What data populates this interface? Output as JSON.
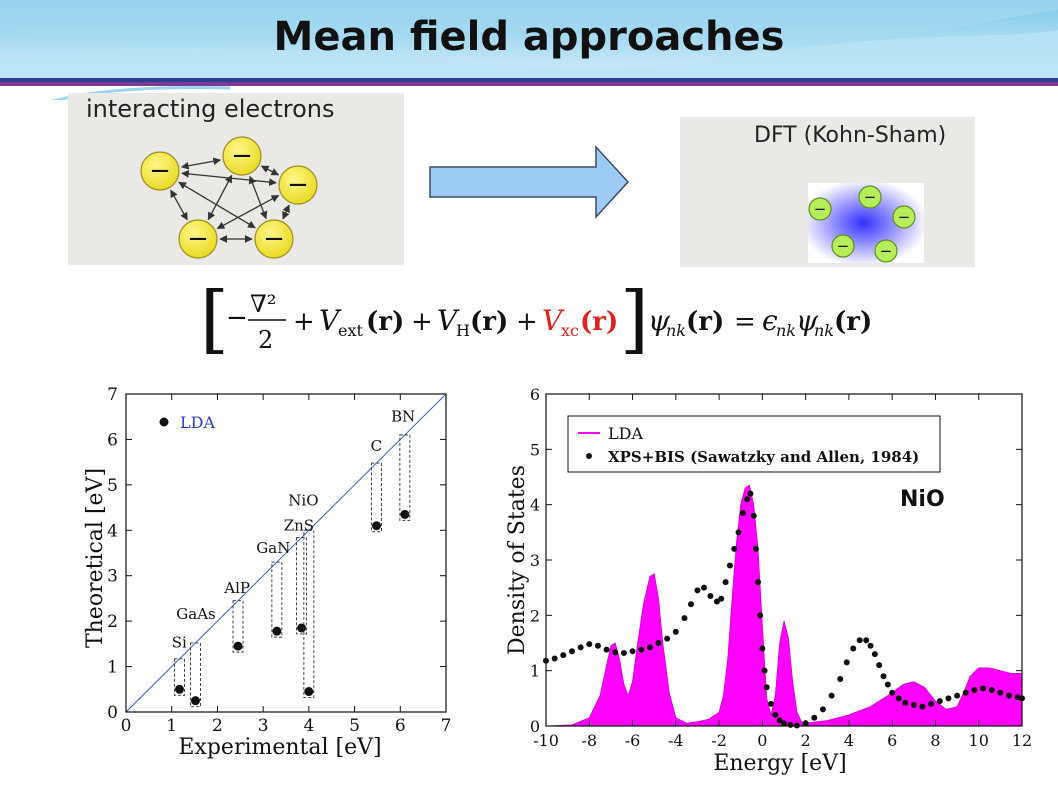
{
  "slide": {
    "title": "Mean field approaches"
  },
  "colors": {
    "banner_blue": "#8fd0ec",
    "stripe_navy": "#2a3e8c",
    "stripe_purple": "#7a3a9a",
    "electron_yellow": "#f2e63a",
    "kohn_sham_green": "#b6ee5a",
    "arrow_blue": "#9ecbf3",
    "lda_line": "#3a5bd0",
    "lda_fill": "#ff00ff",
    "vxc_red": "#e0201a"
  },
  "left_panel": {
    "label": "interacting electrons",
    "electron_symbol": "−",
    "icons": [
      "electron-icon",
      "double-arrow-icon"
    ]
  },
  "right_panel": {
    "label": "DFT (Kohn-Sham)",
    "electron_symbol": "−",
    "icons": [
      "kohn-sham-electron-icon",
      "effective-potential-cloud"
    ]
  },
  "arrow": {
    "icon": "right-arrow-icon"
  },
  "equation": {
    "open_bracket": "[",
    "minus": "−",
    "nabla_sq": "∇²",
    "two": "2",
    "v_ext": "V",
    "v_ext_sub": "ext",
    "v_h": "V",
    "v_h_sub": "H",
    "v_xc": "V",
    "v_xc_sub": "xc",
    "r_arg": "(r)",
    "plus": "+",
    "close_bracket": "]",
    "psi": "ψ",
    "nk_sub": "nk",
    "equals": "=",
    "epsilon": "ϵ"
  },
  "chart_data": [
    {
      "type": "scatter",
      "xlabel": "Experimental   [eV]",
      "ylabel": "Theoretical  [eV]",
      "xlim": [
        0,
        7
      ],
      "ylim": [
        0,
        7
      ],
      "x_ticks": [
        0,
        1,
        2,
        3,
        4,
        5,
        6,
        7
      ],
      "y_ticks": [
        0,
        1,
        2,
        3,
        4,
        5,
        6,
        7
      ],
      "legend": {
        "placement": "top-left",
        "entries": [
          "LDA"
        ]
      },
      "diagonal": true,
      "points": [
        {
          "label": "Si",
          "exp": 1.17,
          "lda": 0.5
        },
        {
          "label": "GaAs",
          "exp": 1.52,
          "lda": 0.25
        },
        {
          "label": "AlP",
          "exp": 2.45,
          "lda": 1.45
        },
        {
          "label": "GaN",
          "exp": 3.3,
          "lda": 1.78
        },
        {
          "label": "ZnS",
          "exp": 3.84,
          "lda": 1.85
        },
        {
          "label": "NiO",
          "exp": 4.0,
          "lda": 0.45
        },
        {
          "label": "C",
          "exp": 5.48,
          "lda": 4.1
        },
        {
          "label": "BN",
          "exp": 6.1,
          "lda": 4.35
        }
      ],
      "labels": [
        {
          "text": "Si",
          "x": 1.0,
          "y": 1.42
        },
        {
          "text": "GaAs",
          "x": 1.1,
          "y": 2.05
        },
        {
          "text": "AlP",
          "x": 2.15,
          "y": 2.62
        },
        {
          "text": "GaN",
          "x": 2.85,
          "y": 3.5
        },
        {
          "text": "ZnS",
          "x": 3.45,
          "y": 4.0
        },
        {
          "text": "NiO",
          "x": 3.55,
          "y": 4.55
        },
        {
          "text": "C",
          "x": 5.35,
          "y": 5.75
        },
        {
          "text": "BN",
          "x": 5.8,
          "y": 6.4
        }
      ]
    },
    {
      "type": "area",
      "xlabel": "Energy   [eV]",
      "ylabel": "Density of States",
      "xlim": [
        -10,
        12
      ],
      "ylim": [
        0,
        6
      ],
      "x_ticks": [
        -10,
        -8,
        -6,
        -4,
        -2,
        0,
        2,
        4,
        6,
        8,
        10,
        12
      ],
      "y_ticks": [
        0,
        1,
        2,
        3,
        4,
        5,
        6
      ],
      "legend": {
        "placement": "top-left"
      },
      "annotation": "NiO",
      "series": [
        {
          "name": "LDA",
          "style": "filled-area",
          "x": [
            -10,
            -8.8,
            -8,
            -7.5,
            -7.2,
            -7.0,
            -6.8,
            -6.6,
            -6.4,
            -6.2,
            -6.0,
            -5.8,
            -5.5,
            -5.2,
            -5.0,
            -4.8,
            -4.6,
            -4.3,
            -4.0,
            -3.5,
            -3.0,
            -2.5,
            -2.0,
            -1.8,
            -1.6,
            -1.4,
            -1.2,
            -1.0,
            -0.8,
            -0.6,
            -0.4,
            -0.2,
            0.0,
            0.2,
            0.4,
            0.6,
            0.8,
            1.0,
            1.2,
            1.4,
            1.6,
            1.8,
            2.0,
            3.0,
            4.0,
            5.0,
            6.0,
            6.5,
            7.0,
            7.5,
            8.0,
            8.5,
            9.0,
            9.3,
            9.6,
            10.0,
            10.5,
            11.0,
            11.5,
            12.0
          ],
          "y": [
            0,
            0.02,
            0.15,
            0.55,
            1.1,
            1.45,
            1.5,
            1.2,
            0.75,
            0.55,
            0.8,
            1.4,
            2.2,
            2.7,
            2.75,
            2.3,
            1.5,
            0.6,
            0.15,
            0.05,
            0.08,
            0.12,
            0.25,
            0.55,
            1.2,
            2.3,
            3.3,
            4.0,
            4.3,
            4.35,
            4.0,
            3.2,
            1.8,
            0.5,
            0.2,
            0.55,
            1.5,
            1.9,
            1.6,
            0.8,
            0.25,
            0.08,
            0.05,
            0.1,
            0.2,
            0.35,
            0.6,
            0.75,
            0.8,
            0.7,
            0.45,
            0.3,
            0.35,
            0.6,
            0.9,
            1.05,
            1.05,
            1.0,
            0.95,
            0.95
          ]
        },
        {
          "name": "XPS+BIS (Sawatzky and Allen, 1984)",
          "style": "dots",
          "x": [
            -10,
            -9.6,
            -9.2,
            -8.8,
            -8.4,
            -8.0,
            -7.6,
            -7.2,
            -6.8,
            -6.4,
            -6.0,
            -5.6,
            -5.2,
            -4.8,
            -4.4,
            -4.0,
            -3.6,
            -3.3,
            -3.0,
            -2.7,
            -2.4,
            -2.1,
            -1.9,
            -1.7,
            -1.5,
            -1.3,
            -1.1,
            -0.9,
            -0.7,
            -0.55,
            -0.4,
            -0.3,
            -0.2,
            -0.1,
            0.0,
            0.1,
            0.2,
            0.4,
            0.6,
            0.8,
            1.0,
            1.3,
            1.6,
            2.0,
            2.4,
            2.8,
            3.2,
            3.6,
            3.9,
            4.2,
            4.5,
            4.8,
            5.0,
            5.2,
            5.4,
            5.6,
            5.8,
            6.0,
            6.3,
            6.6,
            7.0,
            7.4,
            7.8,
            8.2,
            8.6,
            9.0,
            9.4,
            9.8,
            10.2,
            10.6,
            11.0,
            11.4,
            11.8,
            12.0
          ],
          "y": [
            1.18,
            1.22,
            1.28,
            1.35,
            1.42,
            1.48,
            1.45,
            1.38,
            1.33,
            1.32,
            1.35,
            1.38,
            1.42,
            1.5,
            1.58,
            1.7,
            1.95,
            2.2,
            2.45,
            2.5,
            2.35,
            2.25,
            2.3,
            2.6,
            2.9,
            3.2,
            3.5,
            3.85,
            4.1,
            4.2,
            3.8,
            3.2,
            2.6,
            2.0,
            1.4,
            1.0,
            0.7,
            0.4,
            0.2,
            0.1,
            0.05,
            0.02,
            0.01,
            0.05,
            0.15,
            0.3,
            0.55,
            0.85,
            1.15,
            1.4,
            1.55,
            1.55,
            1.45,
            1.3,
            1.1,
            0.9,
            0.75,
            0.6,
            0.5,
            0.42,
            0.38,
            0.35,
            0.4,
            0.45,
            0.5,
            0.55,
            0.6,
            0.65,
            0.68,
            0.65,
            0.6,
            0.55,
            0.52,
            0.5
          ]
        }
      ]
    }
  ]
}
